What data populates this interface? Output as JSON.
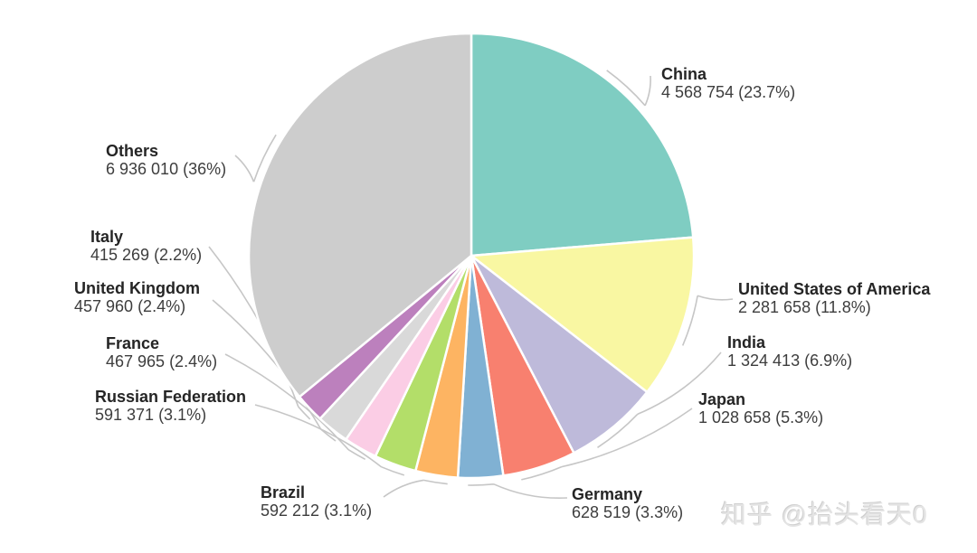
{
  "chart_data": {
    "type": "pie",
    "title": "",
    "direction": "clockwise",
    "start_angle_deg": 0,
    "legend_position": "callout-labels",
    "leader_line_color": "#c6c6c6",
    "slice_border_color": "#ffffff",
    "slices": [
      {
        "label": "China",
        "value": 4568754,
        "percent": 23.7,
        "display": "4 568 754 (23.7%)",
        "color": "#7fcdc2"
      },
      {
        "label": "United States of America",
        "value": 2281658,
        "percent": 11.8,
        "display": "2 281 658 (11.8%)",
        "color": "#f9f7a2"
      },
      {
        "label": "India",
        "value": 1324413,
        "percent": 6.9,
        "display": "1 324 413 (6.9%)",
        "color": "#bebada"
      },
      {
        "label": "Japan",
        "value": 1028658,
        "percent": 5.3,
        "display": "1 028 658 (5.3%)",
        "color": "#f8806f"
      },
      {
        "label": "Germany",
        "value": 628519,
        "percent": 3.3,
        "display": "628 519 (3.3%)",
        "color": "#80b1d3"
      },
      {
        "label": "Brazil",
        "value": 592212,
        "percent": 3.1,
        "display": "592 212 (3.1%)",
        "color": "#fdb462"
      },
      {
        "label": "Russian Federation",
        "value": 591371,
        "percent": 3.1,
        "display": "591 371 (3.1%)",
        "color": "#b3de69"
      },
      {
        "label": "France",
        "value": 467965,
        "percent": 2.4,
        "display": "467 965 (2.4%)",
        "color": "#fbcde5"
      },
      {
        "label": "United Kingdom",
        "value": 457960,
        "percent": 2.4,
        "display": "457 960 (2.4%)",
        "color": "#d9d9d9"
      },
      {
        "label": "Italy",
        "value": 415269,
        "percent": 2.2,
        "display": "415 269 (2.2%)",
        "color": "#bc80bd"
      },
      {
        "label": "Others",
        "value": 6936010,
        "percent": 36,
        "display": "6 936 010 (36%)",
        "color": "#cdcdcd"
      }
    ]
  },
  "watermark": {
    "text": "知乎 @抬头看天0"
  }
}
